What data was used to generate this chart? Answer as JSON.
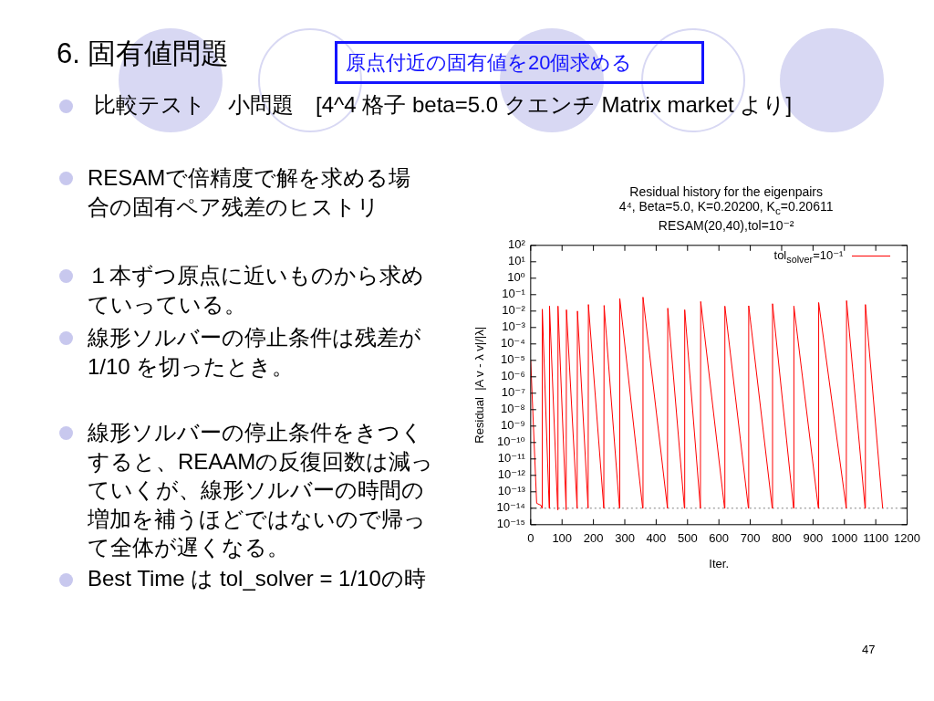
{
  "chart_data": {
    "type": "line",
    "title": "Residual history for the eigenpairs",
    "subtitle": "4⁴, Beta=5.0, K=0.20200, K$_{c}$=0.20611\nRESAM(20,40),tol=10⁻²",
    "xlabel": "Iter.",
    "ylabel": "Residual  |A v - λ v|/|λ|",
    "annotations": [
      "6. 固有値問題",
      "原点付近の固有値を20個求める",
      "比較テスト　小問題　[4^4 格子 beta=5.0 クエンチ Matrix market より]",
      "RESAMで倍精度で解を求める場合の固有ペア残差のヒストリ",
      "１本ずつ原点に近いものから求めていっている。",
      "線形ソルバーの停止条件は残差が1/10 を切ったとき。",
      "線形ソルバーの停止条件をきつくすると、REAAMの反復回数は減っていくが、線形ソルバーの時間の増加を補うほどではないので帰って全体が遅くなる。",
      "Best Time は tol_solver = 1/10の時",
      "47"
    ],
    "series": [
      {
        "name": "tol$_{solver}$=10⁻¹",
        "color": "#ff0000",
        "x": [
          0,
          19,
          33,
          36,
          37,
          59,
          60,
          86,
          87,
          113,
          114,
          148,
          149,
          183,
          184,
          233,
          234,
          283,
          284,
          357,
          358,
          436,
          437,
          490,
          491,
          541,
          542,
          618,
          619,
          694,
          695,
          770,
          771,
          838,
          839,
          917,
          918,
          1006,
          1007,
          1066,
          1067,
          1122
        ],
        "values": [
          1e-05,
          2e-14,
          1.5e-14,
          1e-14,
          0.013,
          1e-14,
          0.02,
          8e-15,
          0.02,
          8e-15,
          0.012,
          1e-14,
          0.01,
          1e-14,
          0.025,
          1e-14,
          0.022,
          1e-14,
          0.058,
          1e-14,
          0.07,
          1e-14,
          0.015,
          1e-14,
          0.012,
          1e-14,
          0.038,
          1e-14,
          0.02,
          1e-14,
          0.021,
          1e-14,
          0.028,
          1e-14,
          0.02,
          1e-14,
          0.033,
          1e-14,
          0.043,
          1e-14,
          0.025,
          1e-14
        ]
      }
    ],
    "xlim": [
      0,
      1200
    ],
    "xticks": [
      0,
      100,
      200,
      300,
      400,
      500,
      600,
      700,
      800,
      900,
      1000,
      1100,
      1200
    ],
    "ylim": [
      1e-15,
      100
    ],
    "yticks": [
      {
        "value": 100,
        "label": "10²"
      },
      {
        "value": 10,
        "label": "10¹"
      },
      {
        "value": 1,
        "label": "10⁰"
      },
      {
        "value": 0.1,
        "label": "10⁻¹"
      },
      {
        "value": 0.01,
        "label": "10⁻²"
      },
      {
        "value": 0.001,
        "label": "10⁻³"
      },
      {
        "value": 0.0001,
        "label": "10⁻⁴"
      },
      {
        "value": 1e-05,
        "label": "10⁻⁵"
      },
      {
        "value": 1e-06,
        "label": "10⁻⁶"
      },
      {
        "value": 1e-07,
        "label": "10⁻⁷"
      },
      {
        "value": 1e-08,
        "label": "10⁻⁸"
      },
      {
        "value": 1e-09,
        "label": "10⁻⁹"
      },
      {
        "value": 1e-10,
        "label": "10⁻¹⁰"
      },
      {
        "value": 1e-11,
        "label": "10⁻¹¹"
      },
      {
        "value": 1e-12,
        "label": "10⁻¹²"
      },
      {
        "value": 1e-13,
        "label": "10⁻¹³"
      },
      {
        "value": 1e-14,
        "label": "10⁻¹⁴"
      },
      {
        "value": 1e-15,
        "label": "10⁻¹⁵"
      }
    ],
    "log": true,
    "grid": false,
    "legend": "top right",
    "ref_lines": [
      {
        "axis": "y",
        "value": 1e-14,
        "color": "#808080",
        "line_style": "dotted"
      }
    ]
  }
}
